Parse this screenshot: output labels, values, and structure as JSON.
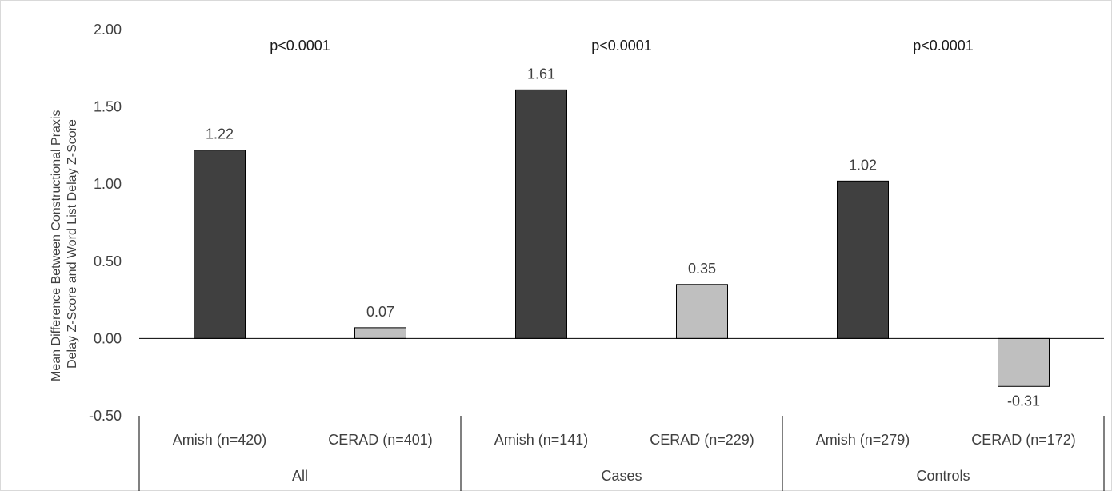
{
  "chart_data": {
    "type": "bar",
    "ylabel_lines": [
      "Mean Difference Between Constructional Praxis",
      "Delay Z-Score and Word List Delay Z-Score"
    ],
    "ylim": [
      -0.5,
      2.0
    ],
    "yticks": [
      2.0,
      1.5,
      1.0,
      0.5,
      0.0,
      -0.5
    ],
    "ytick_labels": [
      "2.00",
      "1.50",
      "1.00",
      "0.50",
      "0.00",
      "-0.50"
    ],
    "grid": false,
    "groups": [
      {
        "name": "All",
        "p_value": "p<0.0001",
        "bars": [
          {
            "label": "Amish (n=420)",
            "value": 1.22,
            "value_label": "1.22",
            "series": "Amish"
          },
          {
            "label": "CERAD (n=401)",
            "value": 0.07,
            "value_label": "0.07",
            "series": "CERAD"
          }
        ]
      },
      {
        "name": "Cases",
        "p_value": "p<0.0001",
        "bars": [
          {
            "label": "Amish (n=141)",
            "value": 1.61,
            "value_label": "1.61",
            "series": "Amish"
          },
          {
            "label": "CERAD (n=229)",
            "value": 0.35,
            "value_label": "0.35",
            "series": "CERAD"
          }
        ]
      },
      {
        "name": "Controls",
        "p_value": "p<0.0001",
        "bars": [
          {
            "label": "Amish (n=279)",
            "value": 1.02,
            "value_label": "1.02",
            "series": "Amish"
          },
          {
            "label": "CERAD (n=172)",
            "value": -0.31,
            "value_label": "-0.31",
            "series": "CERAD"
          }
        ]
      }
    ],
    "colors": {
      "Amish": "#404040",
      "CERAD": "#bfbfbf",
      "bar_edge": "#000000",
      "axis": "#000000",
      "frame": "#d9d9d9"
    }
  }
}
